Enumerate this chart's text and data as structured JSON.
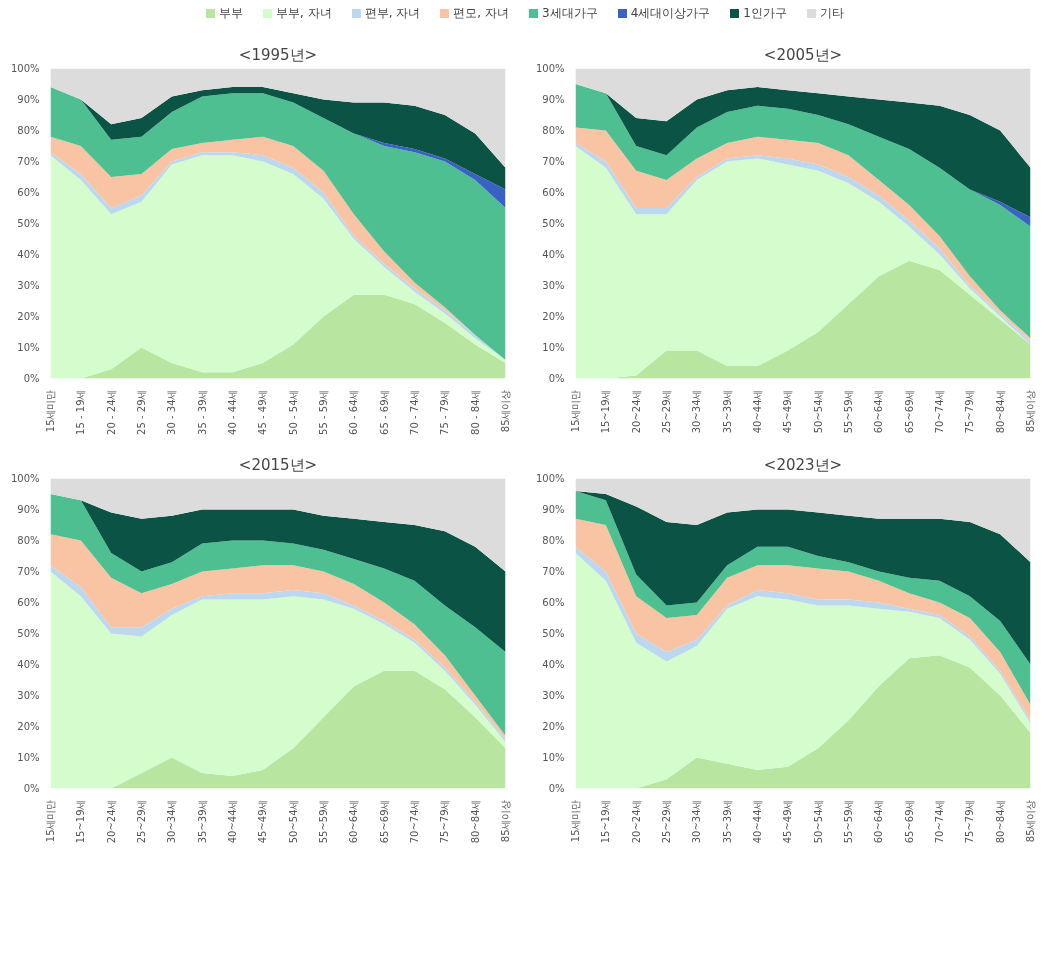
{
  "chart_data": [
    {
      "type": "area",
      "stacked": true,
      "title": "<1995년>",
      "legend": "top",
      "ylim": [
        0,
        100
      ],
      "yticks": [
        {
          "value": 0,
          "label": "0%"
        },
        {
          "value": 10,
          "label": "10%"
        },
        {
          "value": 20,
          "label": "20%"
        },
        {
          "value": 30,
          "label": "30%"
        },
        {
          "value": 40,
          "label": "40%"
        },
        {
          "value": 50,
          "label": "50%"
        },
        {
          "value": 60,
          "label": "60%"
        },
        {
          "value": 70,
          "label": "70%"
        },
        {
          "value": 80,
          "label": "80%"
        },
        {
          "value": 90,
          "label": "90%"
        },
        {
          "value": 100,
          "label": "100%"
        }
      ],
      "categories": [
        "15세미만",
        "15 - 19세",
        "20 - 24세",
        "25 - 29세",
        "30 - 34세",
        "35 - 39세",
        "40 - 44세",
        "45 - 49세",
        "50 - 54세",
        "55 - 59세",
        "60 - 64세",
        "65 - 69세",
        "70 - 74세",
        "75 - 79세",
        "80 - 84세",
        "85세이상"
      ],
      "series": [
        {
          "name": "부부",
          "color": "#b8e6a0",
          "values": [
            0,
            0,
            3,
            10,
            5,
            2,
            2,
            5,
            11,
            20,
            27,
            27,
            24,
            18,
            11,
            5
          ]
        },
        {
          "name": "부부, 자녀",
          "color": "#d4fccc",
          "values": [
            72,
            64,
            50,
            47,
            64,
            70,
            70,
            65,
            55,
            38,
            18,
            9,
            4,
            3,
            2,
            1
          ]
        },
        {
          "name": "편부, 자녀",
          "color": "#bdd7ee",
          "values": [
            1,
            2,
            2,
            2,
            1,
            1,
            1,
            2,
            2,
            2,
            1,
            1,
            1,
            1,
            1,
            0
          ]
        },
        {
          "name": "편모, 자녀",
          "color": "#f8c4a4",
          "values": [
            5,
            9,
            10,
            7,
            4,
            3,
            4,
            6,
            7,
            7,
            7,
            4,
            2,
            1,
            0,
            0
          ]
        },
        {
          "name": "3세대가구",
          "color": "#4dbf91",
          "values": [
            16,
            15,
            12,
            12,
            12,
            15,
            15,
            14,
            14,
            17,
            26,
            34,
            42,
            47,
            50,
            49
          ]
        },
        {
          "name": "4세대이상가구",
          "color": "#3a62c4",
          "values": [
            0,
            0,
            0,
            0,
            0,
            0,
            0,
            0,
            0,
            0,
            0,
            1,
            1,
            1,
            2,
            6
          ]
        },
        {
          "name": "1인가구",
          "color": "#0b5345",
          "values": [
            0,
            0,
            5,
            6,
            5,
            2,
            2,
            2,
            3,
            6,
            10,
            13,
            14,
            14,
            13,
            7
          ]
        },
        {
          "name": "기타",
          "color": "#dcdcdc",
          "values": [
            6,
            10,
            18,
            16,
            9,
            7,
            6,
            6,
            8,
            10,
            11,
            11,
            12,
            15,
            21,
            32
          ]
        }
      ]
    },
    {
      "type": "area",
      "stacked": true,
      "title": "<2005년>",
      "ylim": [
        0,
        100
      ],
      "yticks": [
        {
          "value": 0,
          "label": "0%"
        },
        {
          "value": 10,
          "label": "10%"
        },
        {
          "value": 20,
          "label": "20%"
        },
        {
          "value": 30,
          "label": "30%"
        },
        {
          "value": 40,
          "label": "40%"
        },
        {
          "value": 50,
          "label": "50%"
        },
        {
          "value": 60,
          "label": "60%"
        },
        {
          "value": 70,
          "label": "70%"
        },
        {
          "value": 80,
          "label": "80%"
        },
        {
          "value": 90,
          "label": "90%"
        },
        {
          "value": 100,
          "label": "100%"
        }
      ],
      "categories": [
        "15세미만",
        "15~19세",
        "20~24세",
        "25~29세",
        "30~34세",
        "35~39세",
        "40~44세",
        "45~49세",
        "50~54세",
        "55~59세",
        "60~64세",
        "65~69세",
        "70~74세",
        "75~79세",
        "80~84세",
        "85세이상"
      ],
      "series": [
        {
          "color": "#b8e6a0",
          "values": [
            0,
            0,
            1,
            9,
            9,
            4,
            4,
            9,
            15,
            24,
            33,
            38,
            35,
            27,
            19,
            11
          ]
        },
        {
          "color": "#d4fccc",
          "values": [
            75,
            68,
            52,
            44,
            55,
            66,
            67,
            60,
            52,
            39,
            24,
            11,
            5,
            2,
            1,
            0
          ]
        },
        {
          "color": "#bdd7ee",
          "values": [
            1,
            2,
            2,
            2,
            1,
            1,
            1,
            2,
            2,
            2,
            2,
            2,
            2,
            1,
            1,
            1
          ]
        },
        {
          "color": "#f8c4a4",
          "values": [
            5,
            10,
            12,
            9,
            6,
            5,
            6,
            6,
            7,
            7,
            5,
            5,
            4,
            3,
            1,
            1
          ]
        },
        {
          "color": "#4dbf91",
          "values": [
            14,
            12,
            8,
            8,
            10,
            10,
            10,
            10,
            9,
            10,
            14,
            18,
            22,
            28,
            34,
            36
          ]
        },
        {
          "color": "#3a62c4",
          "values": [
            0,
            0,
            0,
            0,
            0,
            0,
            0,
            0,
            0,
            0,
            0,
            0,
            0,
            0,
            1,
            3
          ]
        },
        {
          "color": "#0b5345",
          "values": [
            0,
            0,
            9,
            11,
            9,
            7,
            6,
            6,
            7,
            9,
            12,
            15,
            20,
            24,
            23,
            16
          ]
        },
        {
          "color": "#dcdcdc",
          "values": [
            5,
            8,
            16,
            17,
            10,
            7,
            6,
            7,
            8,
            9,
            10,
            11,
            12,
            15,
            20,
            32
          ]
        }
      ]
    },
    {
      "type": "area",
      "stacked": true,
      "title": "<2015년>",
      "ylim": [
        0,
        100
      ],
      "yticks": [
        {
          "value": 0,
          "label": "0%"
        },
        {
          "value": 10,
          "label": "10%"
        },
        {
          "value": 20,
          "label": "20%"
        },
        {
          "value": 30,
          "label": "30%"
        },
        {
          "value": 40,
          "label": "40%"
        },
        {
          "value": 50,
          "label": "50%"
        },
        {
          "value": 60,
          "label": "60%"
        },
        {
          "value": 70,
          "label": "70%"
        },
        {
          "value": 80,
          "label": "80%"
        },
        {
          "value": 90,
          "label": "90%"
        },
        {
          "value": 100,
          "label": "100%"
        }
      ],
      "categories": [
        "15세미만",
        "15~19세",
        "20~24세",
        "25~29세",
        "30~34세",
        "35~39세",
        "40~44세",
        "45~49세",
        "50~54세",
        "55~59세",
        "60~64세",
        "65~69세",
        "70~74세",
        "75~79세",
        "80~84세",
        "85세이상"
      ],
      "series": [
        {
          "color": "#b8e6a0",
          "values": [
            0,
            0,
            0,
            5,
            10,
            5,
            4,
            6,
            13,
            23,
            33,
            38,
            38,
            32,
            23,
            13
          ]
        },
        {
          "color": "#d4fccc",
          "values": [
            70,
            62,
            50,
            44,
            46,
            56,
            57,
            55,
            49,
            38,
            25,
            15,
            9,
            6,
            4,
            2
          ]
        },
        {
          "color": "#bdd7ee",
          "values": [
            2,
            3,
            2,
            3,
            2,
            1,
            2,
            2,
            2,
            2,
            1,
            1,
            1,
            1,
            1,
            1
          ]
        },
        {
          "color": "#f8c4a4",
          "values": [
            10,
            15,
            16,
            11,
            8,
            8,
            8,
            9,
            8,
            7,
            7,
            6,
            5,
            4,
            2,
            1
          ]
        },
        {
          "color": "#4dbf91",
          "values": [
            13,
            13,
            8,
            7,
            7,
            9,
            9,
            8,
            7,
            7,
            8,
            11,
            14,
            16,
            22,
            27
          ]
        },
        {
          "color": "#0b5345",
          "values": [
            0,
            0,
            13,
            17,
            15,
            11,
            10,
            10,
            11,
            11,
            13,
            15,
            18,
            24,
            26,
            26
          ]
        },
        {
          "color": "#dcdcdc",
          "values": [
            5,
            7,
            11,
            13,
            12,
            10,
            10,
            10,
            10,
            12,
            13,
            14,
            15,
            17,
            22,
            30
          ]
        }
      ]
    },
    {
      "type": "area",
      "stacked": true,
      "title": "<2023년>",
      "ylim": [
        0,
        100
      ],
      "yticks": [
        {
          "value": 0,
          "label": "0%"
        },
        {
          "value": 10,
          "label": "10%"
        },
        {
          "value": 20,
          "label": "20%"
        },
        {
          "value": 30,
          "label": "30%"
        },
        {
          "value": 40,
          "label": "40%"
        },
        {
          "value": 50,
          "label": "50%"
        },
        {
          "value": 60,
          "label": "60%"
        },
        {
          "value": 70,
          "label": "70%"
        },
        {
          "value": 80,
          "label": "80%"
        },
        {
          "value": 90,
          "label": "90%"
        },
        {
          "value": 100,
          "label": "100%"
        }
      ],
      "categories": [
        "15세미만",
        "15~19세",
        "20~24세",
        "25~29세",
        "30~34세",
        "35~39세",
        "40~44세",
        "45~49세",
        "50~54세",
        "55~59세",
        "60~64세",
        "65~69세",
        "70~74세",
        "75~79세",
        "80~84세",
        "85세이상"
      ],
      "series": [
        {
          "color": "#b8e6a0",
          "values": [
            0,
            0,
            0,
            3,
            10,
            8,
            6,
            7,
            13,
            22,
            33,
            42,
            43,
            39,
            30,
            18
          ]
        },
        {
          "color": "#d4fccc",
          "values": [
            76,
            67,
            47,
            38,
            36,
            50,
            56,
            54,
            46,
            37,
            25,
            15,
            12,
            9,
            7,
            3
          ]
        },
        {
          "color": "#bdd7ee",
          "values": [
            2,
            3,
            3,
            3,
            2,
            1,
            2,
            2,
            2,
            2,
            2,
            1,
            1,
            1,
            1,
            1
          ]
        },
        {
          "color": "#f8c4a4",
          "values": [
            9,
            15,
            12,
            11,
            8,
            9,
            8,
            9,
            10,
            9,
            7,
            5,
            4,
            6,
            6,
            5
          ]
        },
        {
          "color": "#4dbf91",
          "values": [
            9,
            8,
            7,
            4,
            4,
            4,
            6,
            6,
            4,
            3,
            3,
            5,
            7,
            7,
            10,
            13
          ]
        },
        {
          "color": "#0b5345",
          "values": [
            0,
            2,
            22,
            27,
            25,
            17,
            12,
            12,
            14,
            15,
            17,
            19,
            20,
            24,
            28,
            33
          ]
        },
        {
          "color": "#dcdcdc",
          "values": [
            4,
            5,
            9,
            14,
            15,
            11,
            10,
            10,
            11,
            12,
            13,
            13,
            13,
            14,
            18,
            27
          ]
        }
      ]
    }
  ]
}
